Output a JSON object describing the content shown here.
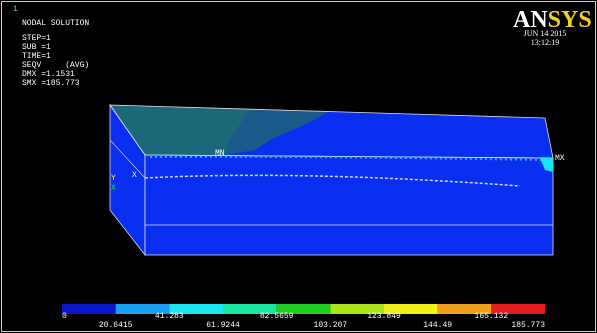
{
  "header": {
    "window_number": "1",
    "title": "NODAL SOLUTION",
    "lines": [
      "STEP=1",
      "SUB =1",
      "TIME=1",
      "SEQV     (AVG)",
      "DMX =1.1531",
      "SMX =185.773"
    ]
  },
  "brand": {
    "logo": "ANSYS",
    "date": "JUN 14 2015",
    "time": "13:12:19"
  },
  "model": {
    "min_label": "MN",
    "max_label": "MX",
    "triad": [
      "Y",
      "X",
      "X"
    ]
  },
  "legend": {
    "colors": [
      "#0a14c8",
      "#1aa0f0",
      "#1ae6f0",
      "#1ae6a0",
      "#20d020",
      "#a8e61a",
      "#f0f01a",
      "#f0a01a",
      "#e61a1a"
    ],
    "labels": [
      "0",
      "20.6415",
      "41.283",
      "61.9244",
      "82.5659",
      "103.207",
      "123.849",
      "144.49",
      "165.132",
      "185.773"
    ]
  }
}
